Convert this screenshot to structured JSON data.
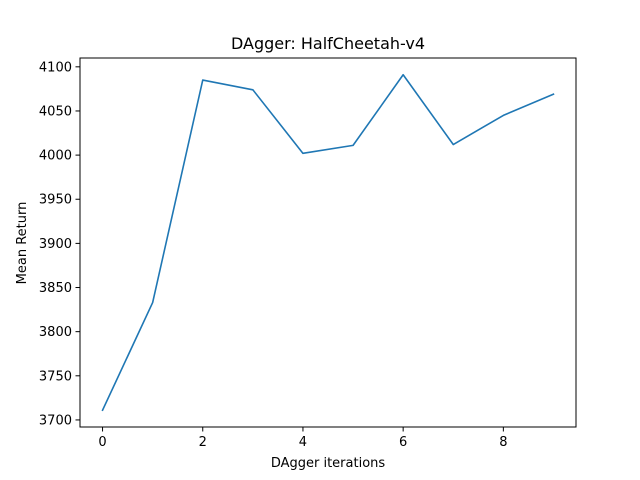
{
  "chart_data": {
    "type": "line",
    "title": "DAgger: HalfCheetah-v4",
    "xlabel": "DAgger iterations",
    "ylabel": "Mean Return",
    "x": [
      0,
      1,
      2,
      3,
      4,
      5,
      6,
      7,
      8,
      9
    ],
    "series": [
      {
        "name": "Mean Return",
        "color": "#1f77b4",
        "values": [
          3711,
          3833,
          4085,
          4074,
          4002,
          4011,
          4091,
          4012,
          4045,
          4069
        ]
      }
    ],
    "xlim": [
      -0.45,
      9.45
    ],
    "ylim": [
      3692,
      4110
    ],
    "xticks": [
      0,
      2,
      4,
      6,
      8
    ],
    "yticks": [
      3700,
      3750,
      3800,
      3850,
      3900,
      3950,
      4000,
      4050,
      4100
    ],
    "grid": false,
    "legend": "none"
  }
}
